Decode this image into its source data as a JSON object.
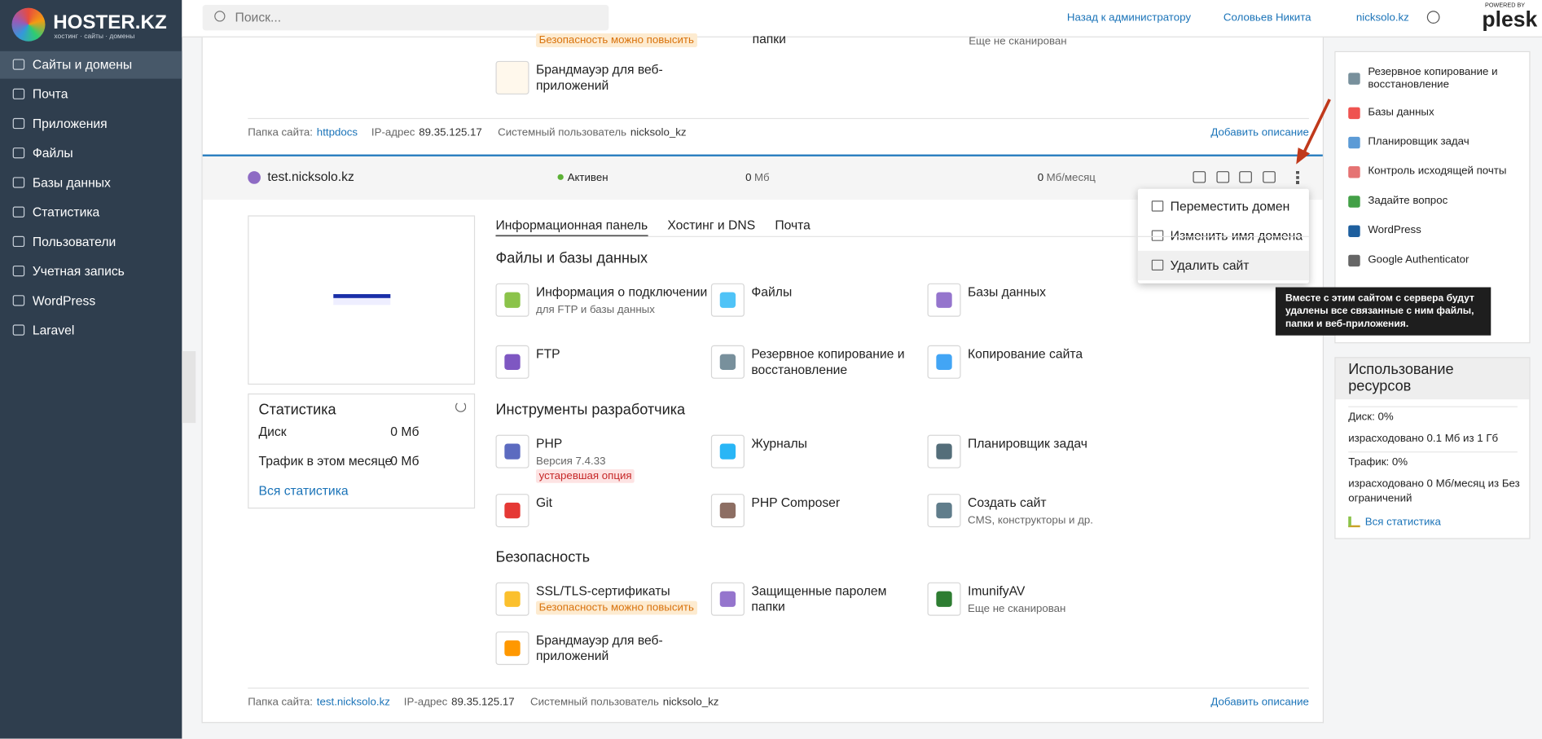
{
  "logo": {
    "name": "HOSTER.KZ",
    "tagline": "хостинг · сайты · домены"
  },
  "search_placeholder": "Поиск...",
  "topbar": {
    "back": "Назад к администратору",
    "user": "Соловьев Никита",
    "domain": "nicksolo.kz",
    "powered": "POWERED BY",
    "brand": "plesk"
  },
  "nav": [
    "Сайты и домены",
    "Почта",
    "Приложения",
    "Файлы",
    "Базы данных",
    "Статистика",
    "Пользователи",
    "Учетная запись",
    "WordPress",
    "Laravel"
  ],
  "top_partial": {
    "badge": "Безопасность можно повысить",
    "folders": "папки",
    "scan": "Еще не сканирован",
    "firewall": "Брандмауэр для веб-приложений"
  },
  "top_footer": {
    "folder_label": "Папка сайта:",
    "folder": "httpdocs",
    "ip_label": "IP-адрес",
    "ip": "89.35.125.17",
    "user_label": "Системный пользователь",
    "user": "nicksolo_kz",
    "add": "Добавить описание"
  },
  "domain_row": {
    "name": "test.nicksolo.kz",
    "status": "Активен",
    "disk": "0",
    "disk_unit": "Мб",
    "traffic": "0",
    "traffic_unit": "Мб/месяц"
  },
  "menu": [
    "Переместить домен",
    "Изменить имя домена",
    "Удалить сайт"
  ],
  "tooltip": "Вместе с этим сайтом с сервера будут удалены все связанные с ним файлы, папки и веб-приложения.",
  "tabs": [
    "Информационная панель",
    "Хостинг и DNS",
    "Почта"
  ],
  "sections": [
    {
      "title": "Файлы и базы данных",
      "items": [
        {
          "title": "Информация о подключении",
          "subtitle": "для FTP и базы данных"
        },
        {
          "title": "Файлы"
        },
        {
          "title": "Базы данных"
        },
        {
          "title": "FTP"
        },
        {
          "title": "Резервное копирование и восстановление"
        },
        {
          "title": "Копирование сайта"
        }
      ]
    },
    {
      "title": "Инструменты разработчика",
      "items": [
        {
          "title": "PHP",
          "subtitle": "Версия 7.4.33",
          "badge": "устаревшая опция"
        },
        {
          "title": "Журналы"
        },
        {
          "title": "Планировщик задач"
        },
        {
          "title": "Git"
        },
        {
          "title": "PHP Composer"
        },
        {
          "title": "Создать сайт",
          "subtitle": "CMS, конструкторы и др."
        }
      ]
    },
    {
      "title": "Безопасность",
      "items": [
        {
          "title": "SSL/TLS-сертификаты",
          "badge": "Безопасность можно повысить"
        },
        {
          "title": "Защищенные паролем папки"
        },
        {
          "title": "ImunifyAV",
          "subtitle": "Еще не сканирован"
        },
        {
          "title": "Брандмауэр для веб-приложений"
        }
      ]
    }
  ],
  "stats": {
    "title": "Статистика",
    "rows": [
      {
        "label": "Диск",
        "value": "0 Мб"
      },
      {
        "label": "Трафик в этом месяце",
        "value": "0 Мб"
      }
    ],
    "link": "Вся статистика"
  },
  "footer": {
    "folder_label": "Папка сайта:",
    "folder": "test.nicksolo.kz",
    "ip_label": "IP-адрес",
    "ip": "89.35.125.17",
    "user_label": "Системный пользователь",
    "user": "nicksolo_kz",
    "add": "Добавить описание"
  },
  "right_links": [
    "Резервное копирование и восстановление",
    "Базы данных",
    "Планировщик задач",
    "Контроль исходящей почты",
    "Задайте вопрос",
    "WordPress",
    "Google Authenticator"
  ],
  "resources": {
    "title": "Использование ресурсов",
    "lines": [
      "Диск: 0%",
      "израсходовано 0.1 Мб из 1 Гб",
      "Трафик: 0%",
      "израсходовано 0 Мб/месяц из Без ограничений"
    ],
    "link": "Вся статистика"
  }
}
